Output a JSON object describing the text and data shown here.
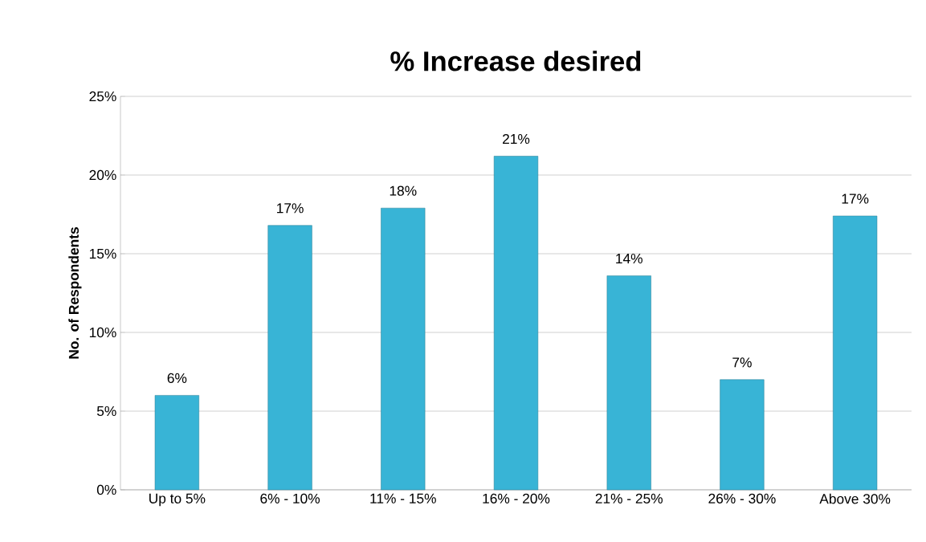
{
  "chart_data": {
    "type": "bar",
    "title": "% Increase desired",
    "ylabel": "No. of Respondents",
    "categories": [
      "Up to 5%",
      "6% - 10%",
      "11% - 15%",
      "16% - 20%",
      "21% - 25%",
      "26% - 30%",
      "Above 30%"
    ],
    "values": [
      6.0,
      16.8,
      17.9,
      21.2,
      13.6,
      7.0,
      17.4
    ],
    "value_labels": [
      "6%",
      "17%",
      "18%",
      "21%",
      "14%",
      "7%",
      "17%"
    ],
    "color": "#38b4d6",
    "ylim": [
      0,
      25
    ],
    "yticks": [
      {
        "value": 0,
        "label": "0%"
      },
      {
        "value": 5,
        "label": "5%"
      },
      {
        "value": 10,
        "label": "10%"
      },
      {
        "value": 15,
        "label": "15%"
      },
      {
        "value": 20,
        "label": "20%"
      },
      {
        "value": 25,
        "label": "25%"
      }
    ],
    "grid": "y"
  }
}
